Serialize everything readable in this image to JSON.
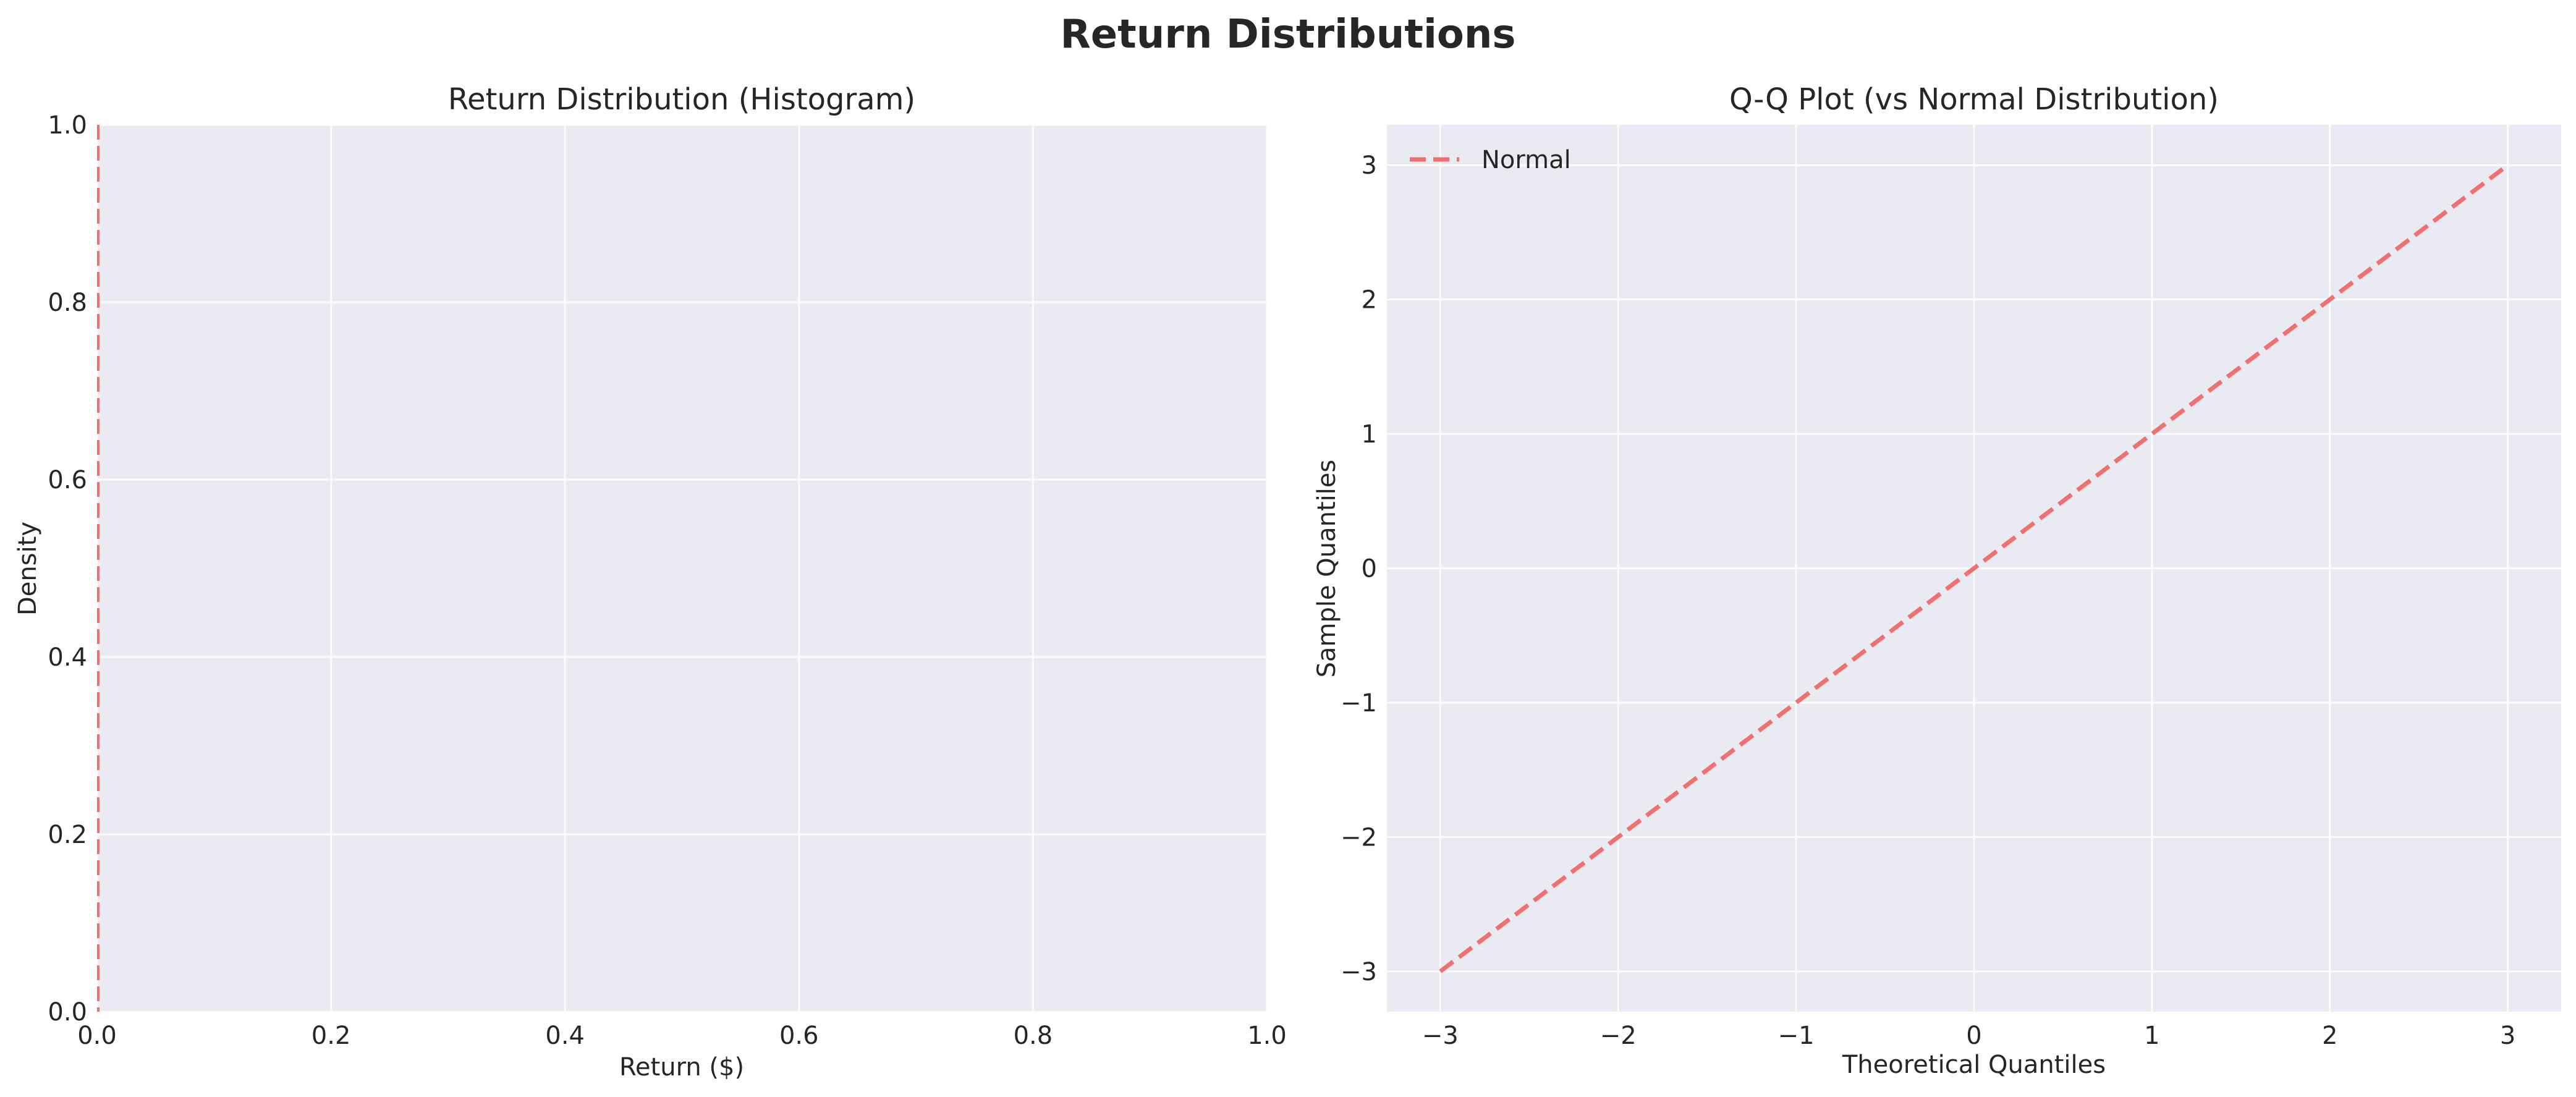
{
  "figure": {
    "title": "Return Distributions"
  },
  "chart_data": [
    {
      "type": "histogram",
      "title": "Return Distribution (Histogram)",
      "xlabel": "Return ($)",
      "ylabel": "Density",
      "xlim": [
        0.0,
        1.0
      ],
      "ylim": [
        0.0,
        1.0
      ],
      "xticks": [
        0.0,
        0.2,
        0.4,
        0.6,
        0.8,
        1.0
      ],
      "xtick_labels": [
        "0.0",
        "0.2",
        "0.4",
        "0.6",
        "0.8",
        "1.0"
      ],
      "yticks": [
        0.0,
        0.2,
        0.4,
        0.6,
        0.8,
        1.0
      ],
      "ytick_labels": [
        "0.0",
        "0.2",
        "0.4",
        "0.6",
        "0.8",
        "1.0"
      ],
      "grid": true,
      "bins": [],
      "vlines": [
        {
          "x": 0.0,
          "color": "#f07070",
          "style": "dashed"
        }
      ]
    },
    {
      "type": "line",
      "title": "Q-Q Plot (vs Normal Distribution)",
      "xlabel": "Theoretical Quantiles",
      "ylabel": "Sample Quantiles",
      "xlim": [
        -3.3,
        3.3
      ],
      "ylim": [
        -3.3,
        3.3
      ],
      "xticks": [
        -3,
        -2,
        -1,
        0,
        1,
        2,
        3
      ],
      "xtick_labels": [
        "−3",
        "−2",
        "−1",
        "0",
        "1",
        "2",
        "3"
      ],
      "yticks": [
        -3,
        -2,
        -1,
        0,
        1,
        2,
        3
      ],
      "ytick_labels": [
        "−3",
        "−2",
        "−1",
        "0",
        "1",
        "2",
        "3"
      ],
      "grid": true,
      "legend_position": "top-left",
      "series": [
        {
          "name": "Normal",
          "x": [
            -3,
            3
          ],
          "y": [
            -3,
            3
          ],
          "color": "#f07070",
          "style": "dashed"
        }
      ]
    }
  ]
}
